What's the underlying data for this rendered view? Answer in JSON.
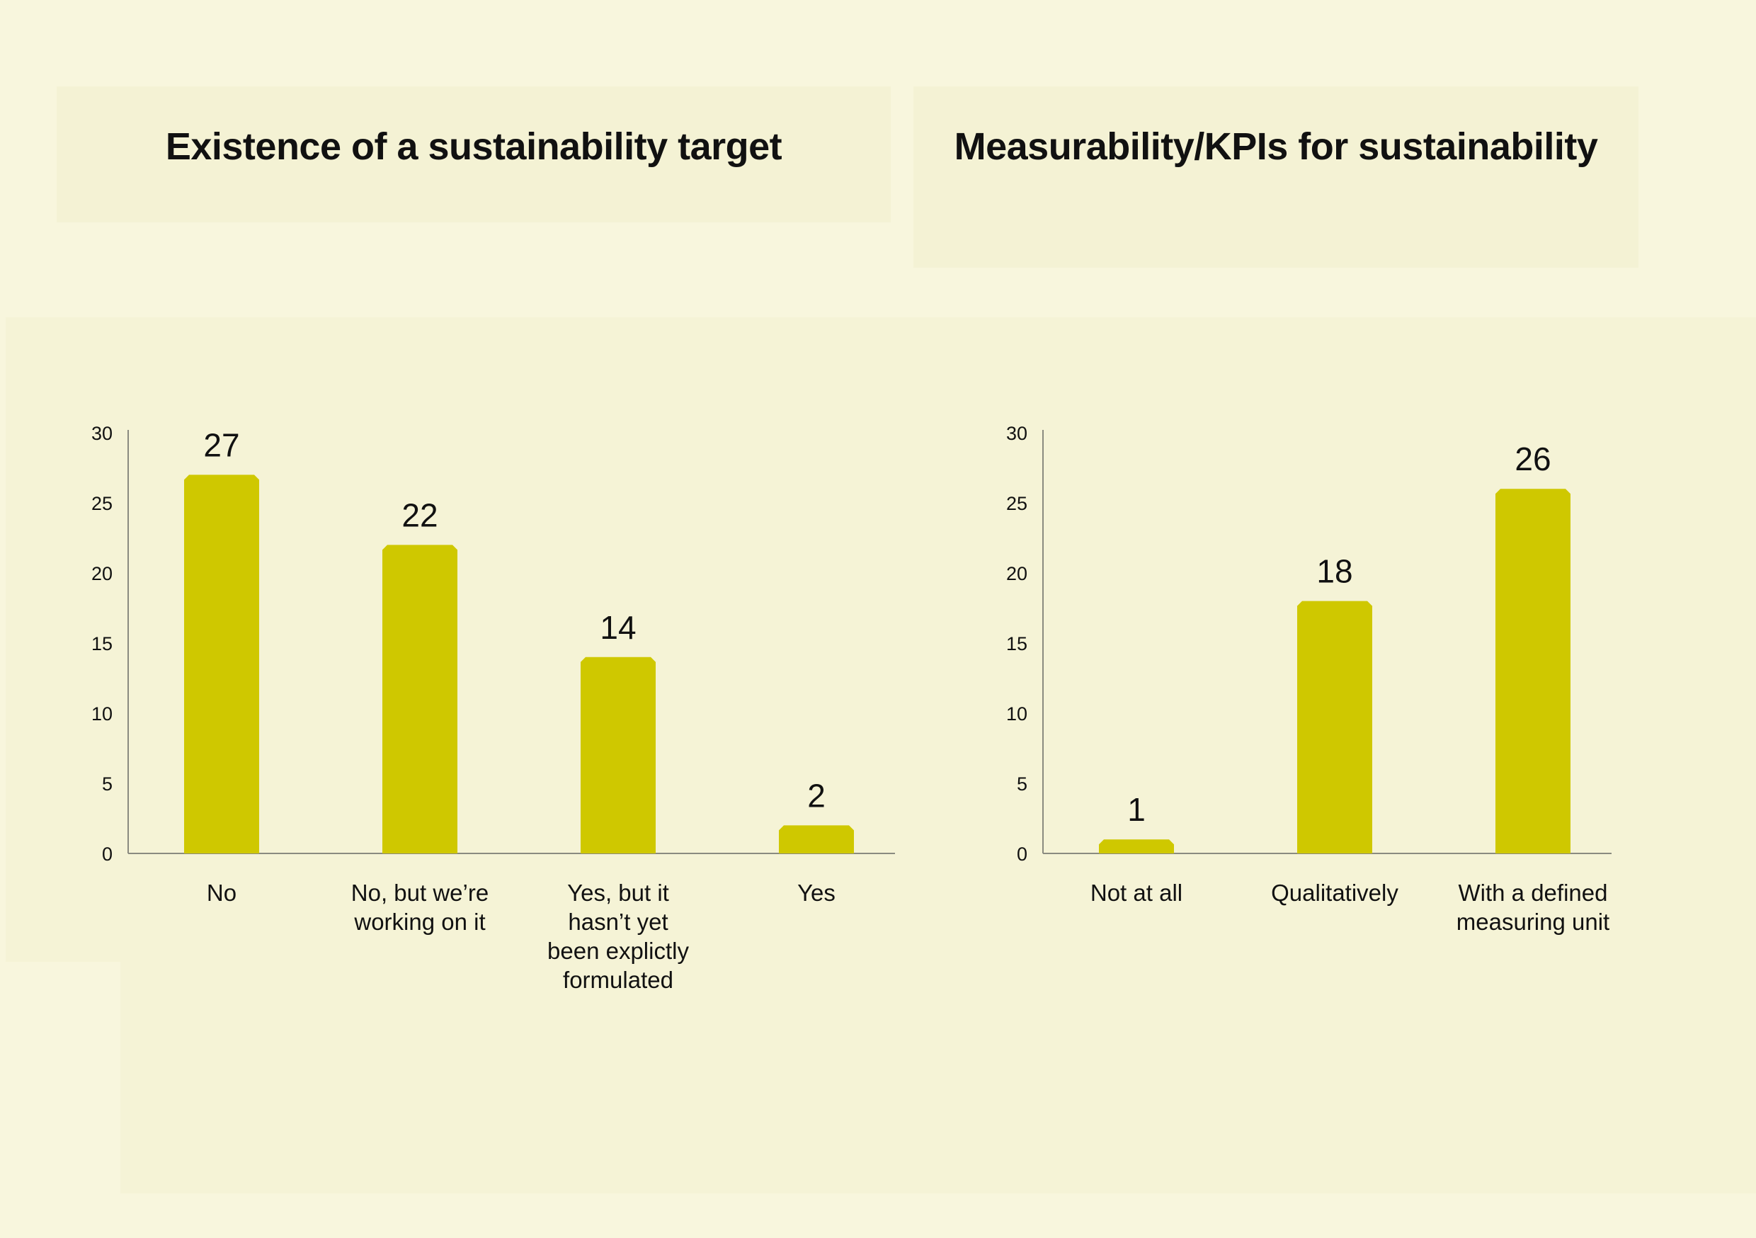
{
  "bar_color": "#cfc800",
  "axis_color": "#8a8a80",
  "chart_data": [
    {
      "type": "bar",
      "title": "Existence of a sustainability target",
      "categories": [
        "No",
        "No, but we’re working on it",
        "Yes, but it hasn’t yet been explictly formulated",
        "Yes"
      ],
      "category_lines": [
        [
          "No"
        ],
        [
          "No, but we’re",
          "working on it"
        ],
        [
          "Yes, but it",
          "hasn’t yet",
          "been explictly",
          "formulated"
        ],
        [
          "Yes"
        ]
      ],
      "values": [
        27,
        22,
        14,
        2
      ],
      "ylim": [
        0,
        30
      ],
      "yticks": [
        0,
        5,
        10,
        15,
        20,
        25,
        30
      ],
      "data_labels": true,
      "grid": false,
      "xlabel": "",
      "ylabel": ""
    },
    {
      "type": "bar",
      "title": "Measurability/KPIs for sustainability",
      "categories": [
        "Not at all",
        "Qualitatively",
        "With a defined measuring unit"
      ],
      "category_lines": [
        [
          "Not at all"
        ],
        [
          "Qualitatively"
        ],
        [
          "With a defined",
          "measuring unit"
        ]
      ],
      "values": [
        1,
        18,
        26
      ],
      "ylim": [
        0,
        30
      ],
      "yticks": [
        0,
        5,
        10,
        15,
        20,
        25,
        30
      ],
      "data_labels": true,
      "grid": false,
      "xlabel": "",
      "ylabel": ""
    }
  ]
}
